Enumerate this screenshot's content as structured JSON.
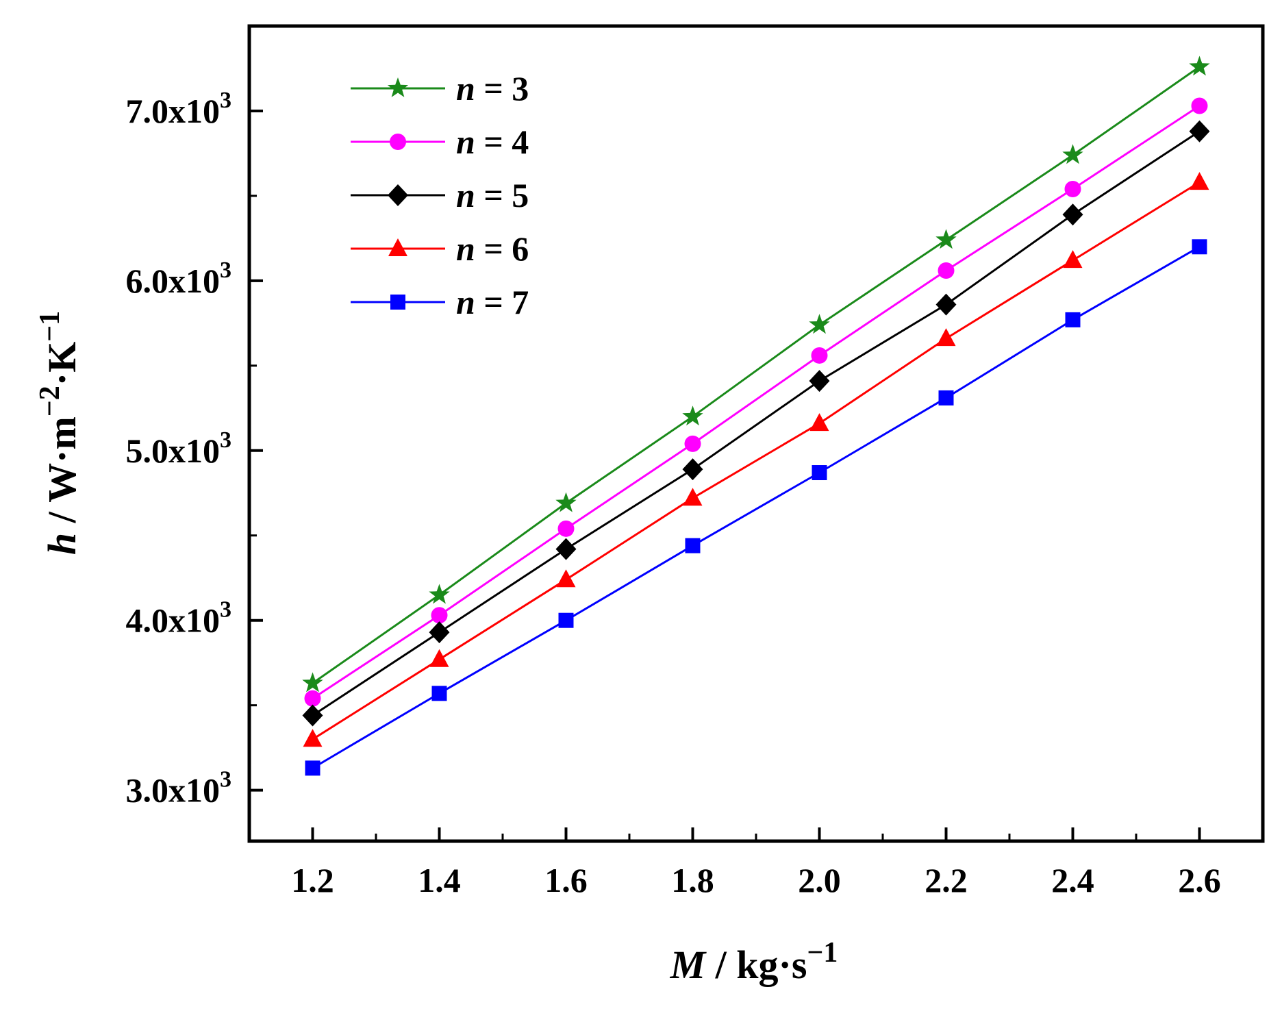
{
  "chart_data": {
    "type": "line",
    "title": "",
    "x": [
      1.2,
      1.4,
      1.6,
      1.8,
      2.0,
      2.2,
      2.4,
      2.6
    ],
    "x_tick_labels": [
      "1.2",
      "1.4",
      "1.6",
      "1.8",
      "2.0",
      "2.2",
      "2.4",
      "2.6"
    ],
    "y_ticks": [
      3000,
      4000,
      5000,
      6000,
      7000
    ],
    "y_tick_labels": [
      {
        "mantissa": "3.0x10",
        "exp": "3"
      },
      {
        "mantissa": "4.0x10",
        "exp": "3"
      },
      {
        "mantissa": "5.0x10",
        "exp": "3"
      },
      {
        "mantissa": "6.0x10",
        "exp": "3"
      },
      {
        "mantissa": "7.0x10",
        "exp": "3"
      }
    ],
    "xlim": [
      1.1,
      2.7
    ],
    "ylim": [
      2700,
      7500
    ],
    "xlabel": {
      "var": "M",
      "unit": " / kg·s",
      "exp": "−1"
    },
    "ylabel": {
      "var": "h",
      "unit": " / W·m",
      "exp1": "−2",
      "mid": "·K",
      "exp2": "−1"
    },
    "legend_position": "top-left",
    "series": [
      {
        "name": "n = 3",
        "var": "n",
        "rest": " = 3",
        "color": "#1a8a1a",
        "marker": "star",
        "values": [
          3630,
          4150,
          4690,
          5200,
          5740,
          6240,
          6740,
          7260
        ]
      },
      {
        "name": "n = 4",
        "var": "n",
        "rest": " = 4",
        "color": "#ff00ff",
        "marker": "circle",
        "values": [
          3540,
          4030,
          4540,
          5040,
          5560,
          6060,
          6540,
          7030
        ]
      },
      {
        "name": "n = 5",
        "var": "n",
        "rest": " = 5",
        "color": "#000000",
        "marker": "diamond",
        "values": [
          3440,
          3930,
          4420,
          4890,
          5410,
          5860,
          6390,
          6880
        ]
      },
      {
        "name": "n = 6",
        "var": "n",
        "rest": " = 6",
        "color": "#ff0000",
        "marker": "triangle",
        "values": [
          3300,
          3770,
          4240,
          4720,
          5160,
          5660,
          6120,
          6580
        ]
      },
      {
        "name": "n = 7",
        "var": "n",
        "rest": " = 7",
        "color": "#0000ff",
        "marker": "square",
        "values": [
          3130,
          3570,
          4000,
          4440,
          4870,
          5310,
          5770,
          6200
        ]
      }
    ]
  }
}
